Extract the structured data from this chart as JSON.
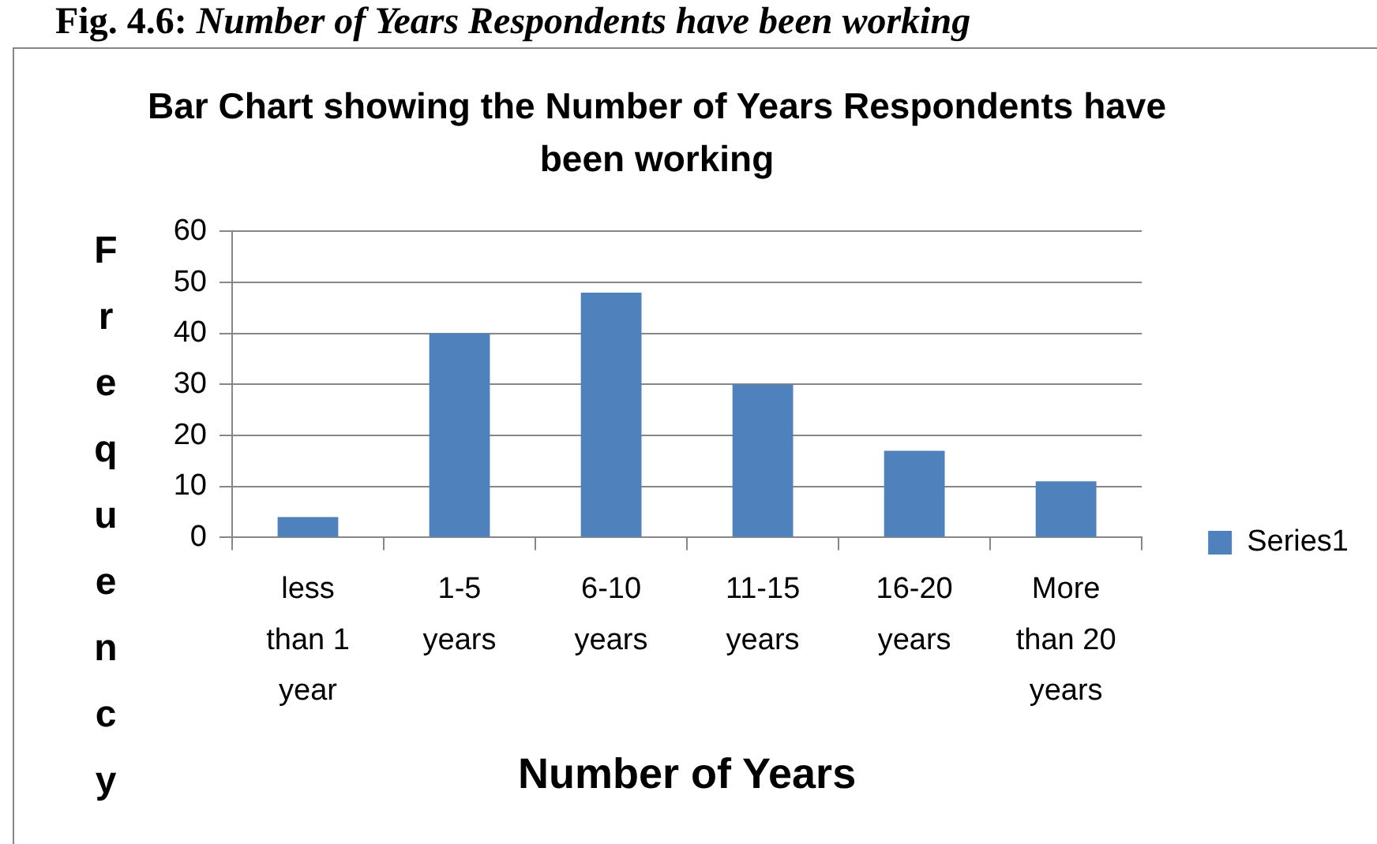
{
  "chart_data": {
    "type": "bar",
    "title": "Bar Chart showing the Number of Years Respondents have been working",
    "xlabel": "Number of Years",
    "ylabel": "Frequency",
    "categories": [
      "less than 1 year",
      "1-5 years",
      "6-10 years",
      "11-15 years",
      "16-20 years",
      "More than 20 years"
    ],
    "series": [
      {
        "name": "Series1",
        "color": "#4f81bd",
        "values": [
          4,
          40,
          48,
          30,
          17,
          11
        ]
      }
    ],
    "ylim": [
      0,
      60
    ],
    "yticks": [
      0,
      10,
      20,
      30,
      40,
      50,
      60
    ],
    "grid": "y",
    "legend": "right",
    "annotations": [
      "Fig. 4.6: Number of Years Respondents have been working"
    ]
  }
}
